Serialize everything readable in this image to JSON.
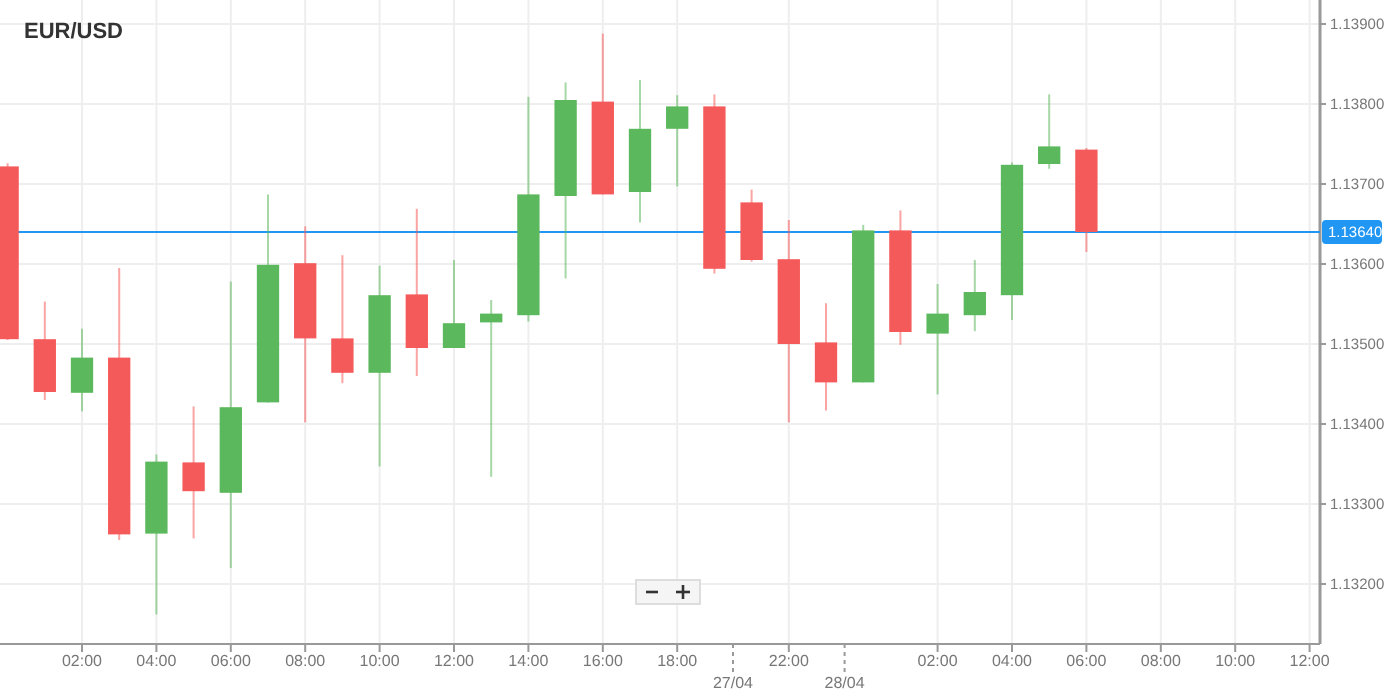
{
  "chart_data": {
    "type": "candlestick",
    "title": "EUR/USD",
    "categories": [
      null,
      null,
      "02:00",
      null,
      "04:00",
      null,
      "06:00",
      null,
      "08:00",
      null,
      "10:00",
      null,
      "12:00",
      null,
      "14:00",
      null,
      "16:00",
      null,
      "18:00",
      null,
      null,
      "22:00",
      null,
      null,
      null,
      "02:00",
      null,
      "04:00",
      null,
      "06:00",
      null,
      "08:00",
      null,
      "10:00",
      null,
      "12:00"
    ],
    "ohlc": [
      [
        1.13722,
        1.13726,
        1.13505,
        1.13506
      ],
      [
        1.13506,
        1.13553,
        1.1343,
        1.1344
      ],
      [
        1.13439,
        1.13519,
        1.13416,
        1.13483
      ],
      [
        1.13483,
        1.13595,
        1.13255,
        1.13262
      ],
      [
        1.13263,
        1.13362,
        1.13162,
        1.13353
      ],
      [
        1.13352,
        1.13422,
        1.13257,
        1.13316
      ],
      [
        1.13314,
        1.13578,
        1.1322,
        1.13421
      ],
      [
        1.13427,
        1.13687,
        1.13427,
        1.13599
      ],
      [
        1.13601,
        1.13647,
        1.13402,
        1.13507
      ],
      [
        1.13507,
        1.13611,
        1.13451,
        1.13464
      ],
      [
        1.13464,
        1.13598,
        1.13347,
        1.13561
      ],
      [
        1.13562,
        1.13669,
        1.1346,
        1.13495
      ],
      [
        1.13495,
        1.13605,
        1.13495,
        1.13526
      ],
      [
        1.13527,
        1.13555,
        1.13334,
        1.13538
      ],
      [
        1.13536,
        1.13809,
        1.13528,
        1.13687
      ],
      [
        1.13685,
        1.13827,
        1.13582,
        1.13805
      ],
      [
        1.13803,
        1.13888,
        1.13687,
        1.13687
      ],
      [
        1.1369,
        1.1383,
        1.13652,
        1.13769
      ],
      [
        1.13769,
        1.13811,
        1.13697,
        1.13797
      ],
      [
        1.13797,
        1.13812,
        1.13588,
        1.13594
      ],
      [
        1.13677,
        1.13693,
        1.13603,
        1.13605
      ],
      [
        1.13606,
        1.13655,
        1.13402,
        1.135
      ],
      [
        1.13502,
        1.13551,
        1.13417,
        1.13452
      ],
      [
        1.13452,
        1.13649,
        1.13452,
        1.13642
      ],
      [
        1.13642,
        1.13667,
        1.13499,
        1.13515
      ],
      [
        1.13513,
        1.13575,
        1.13437,
        1.13538
      ],
      [
        1.13536,
        1.13605,
        1.13516,
        1.13565
      ],
      [
        1.13561,
        1.13727,
        1.1353,
        1.13724
      ],
      [
        1.13725,
        1.13812,
        1.13719,
        1.13747
      ],
      [
        1.13743,
        1.13745,
        1.13615,
        1.1364
      ],
      null,
      null,
      null,
      null,
      null,
      null
    ],
    "colors": [
      "#f55a5a",
      "#f55a5a",
      "#5cb85c",
      "#f55a5a",
      "#5cb85c",
      "#f55a5a",
      "#5cb85c",
      "#5cb85c",
      "#f55a5a",
      "#f55a5a",
      "#5cb85c",
      "#f55a5a",
      "#5cb85c",
      "#5cb85c",
      "#5cb85c",
      "#5cb85c",
      "#f55a5a",
      "#5cb85c",
      "#5cb85c",
      "#f55a5a",
      "#f55a5a",
      "#f55a5a",
      "#f55a5a",
      "#5cb85c",
      "#f55a5a",
      "#5cb85c",
      "#5cb85c",
      "#5cb85c",
      "#5cb85c",
      "#f55a5a",
      null,
      null,
      null,
      null,
      null,
      null
    ],
    "ylim": [
      1.13125,
      1.1393
    ],
    "yticks": [
      {
        "value": 1.132,
        "label": "1.13200"
      },
      {
        "value": 1.133,
        "label": "1.13300"
      },
      {
        "value": 1.134,
        "label": "1.13400"
      },
      {
        "value": 1.135,
        "label": "1.13500"
      },
      {
        "value": 1.136,
        "label": "1.13600"
      },
      {
        "value": 1.137,
        "label": "1.13700"
      },
      {
        "value": 1.138,
        "label": "1.13800"
      },
      {
        "value": 1.139,
        "label": "1.13900"
      }
    ],
    "annotations": [
      "27/04",
      "28/04"
    ],
    "ref_lines": [
      {
        "axis": "y",
        "value": 1.1364,
        "label": "1.13640",
        "color": "#2196f3"
      }
    ],
    "grid": true
  }
}
